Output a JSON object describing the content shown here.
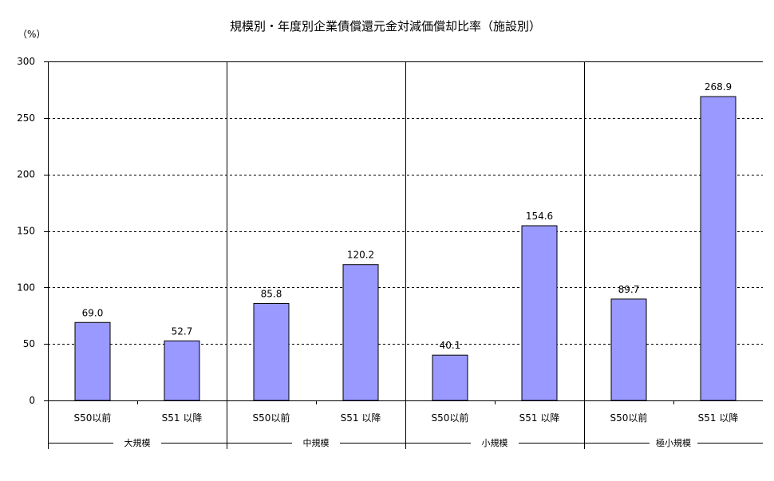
{
  "chart_data": {
    "type": "bar",
    "title": "規模別・年度別企業債償還元金対減価償却比率（施設別）",
    "unit_label": "（%）",
    "xlabel": "",
    "ylabel": "",
    "ylim": [
      0,
      300
    ],
    "yticks": [
      "0",
      "50",
      "100",
      "150",
      "200",
      "250",
      "300"
    ],
    "ytick_values": [
      0,
      50,
      100,
      150,
      200,
      250,
      300
    ],
    "grid": true,
    "legend": "none",
    "bar_color": "#9999ff",
    "groups": [
      {
        "name": "大規模",
        "categories": [
          "S50以前",
          "S51 以降"
        ],
        "values": [
          69.0,
          52.7
        ],
        "labels": [
          "69.0",
          "52.7"
        ]
      },
      {
        "name": "中規模",
        "categories": [
          "S50以前",
          "S51 以降"
        ],
        "values": [
          85.8,
          120.2
        ],
        "labels": [
          "85.8",
          "120.2"
        ]
      },
      {
        "name": "小規模",
        "categories": [
          "S50以前",
          "S51 以降"
        ],
        "values": [
          40.1,
          154.6
        ],
        "labels": [
          "40.1",
          "154.6"
        ]
      },
      {
        "name": "極小規模",
        "categories": [
          "S50以前",
          "S51 以降"
        ],
        "values": [
          89.7,
          268.9
        ],
        "labels": [
          "89.7",
          "268.9"
        ]
      }
    ]
  }
}
